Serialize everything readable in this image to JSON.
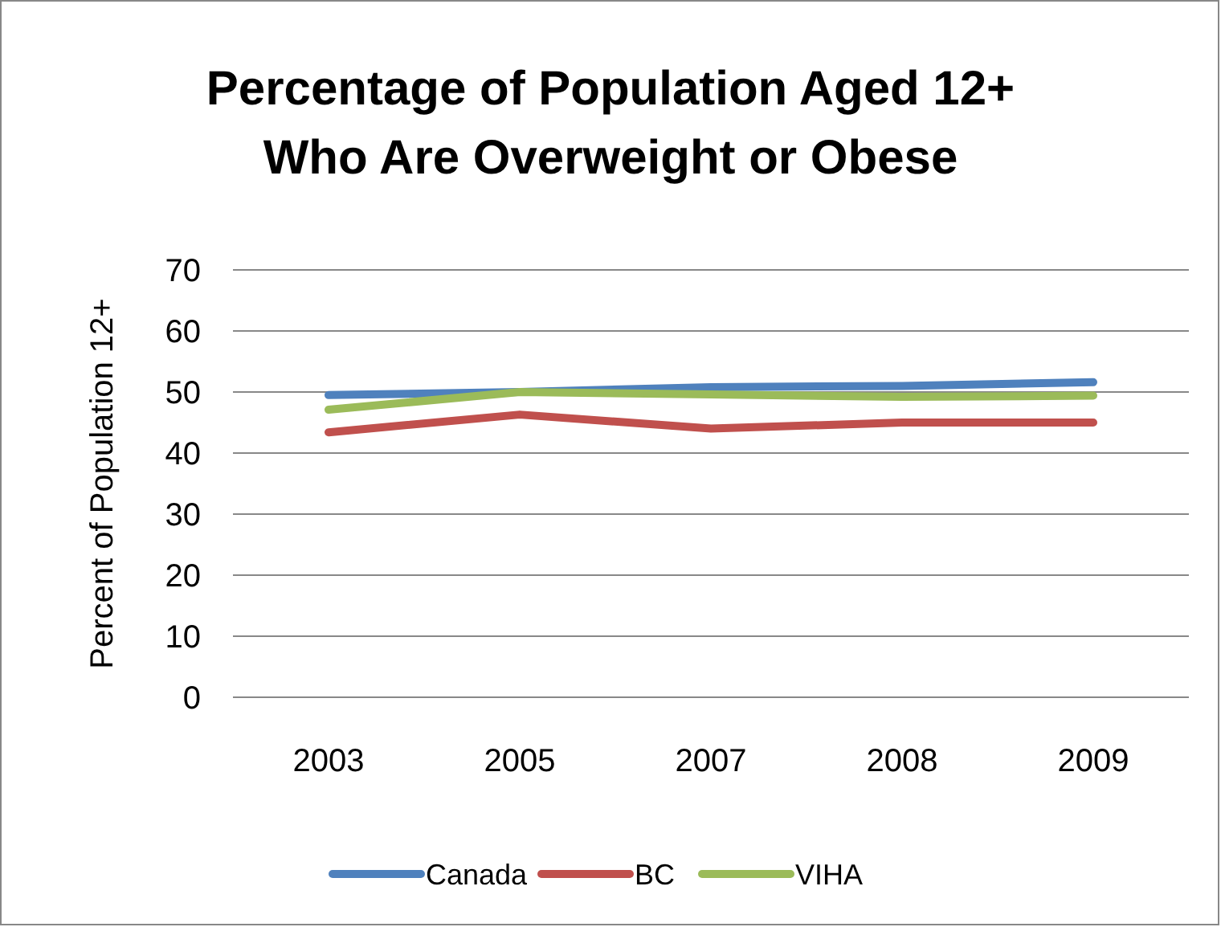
{
  "chart_data": {
    "type": "line",
    "title": "Percentage of Population Aged 12+\nWho Are Overweight or Obese",
    "ylabel": "Percent of Population 12+",
    "categories": [
      "2003",
      "2005",
      "2007",
      "2008",
      "2009"
    ],
    "series": [
      {
        "name": "Canada",
        "color": "#4f81bd",
        "values": [
          49.5,
          50,
          50.8,
          51,
          51.6
        ]
      },
      {
        "name": "BC",
        "color": "#c0504d",
        "values": [
          43.4,
          46.3,
          44,
          45,
          45
        ]
      },
      {
        "name": "VIHA",
        "color": "#9bbb59",
        "values": [
          47.1,
          50,
          49.6,
          49.2,
          49.4
        ]
      }
    ],
    "ylim": [
      0,
      70
    ],
    "yticks": [
      0,
      10,
      20,
      30,
      40,
      50,
      60,
      70
    ],
    "grid": "y",
    "legend": "bottom",
    "marker": "none",
    "line_style": "solid"
  }
}
